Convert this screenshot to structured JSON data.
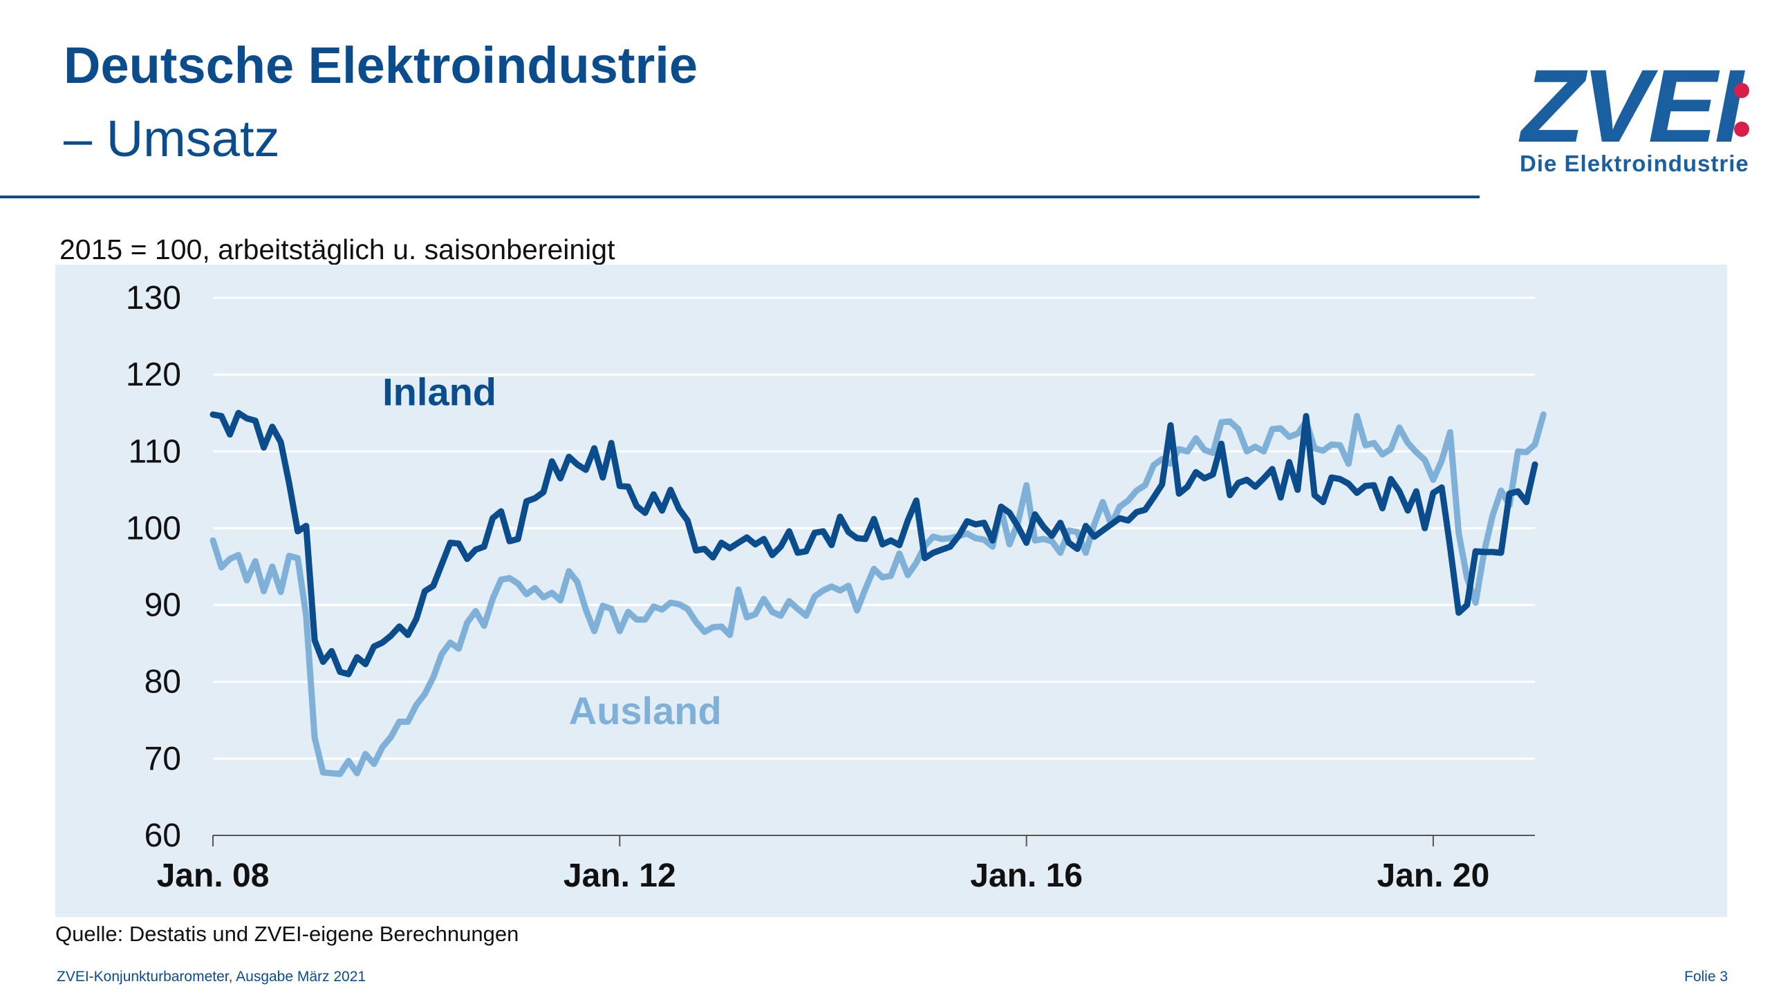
{
  "header": {
    "title_line1": "Deutsche Elektroindustrie",
    "title_line2": "– Umsatz"
  },
  "logo": {
    "wordmark": "ZVEI",
    "tagline": "Die Elektroindustrie",
    "dot_color": "#d6204b"
  },
  "subtitle": "2015 = 100, arbeitstäglich u. saisonbereinigt",
  "source": "Quelle: Destatis und ZVEI-eigene Berechnungen",
  "footer": {
    "left": "ZVEI-Konjunkturbarometer, Ausgabe März 2021",
    "right": "Folie 3"
  },
  "colors": {
    "brand": "#0b4c8c",
    "inland": "#0b4c8c",
    "ausland": "#7eb0d8",
    "panel": "#e2edf6"
  },
  "chart_data": {
    "type": "line",
    "title": "Deutsche Elektroindustrie – Umsatz",
    "ylabel": "2015 = 100, arbeitstäglich u. saisonbereinigt",
    "xlabel": "",
    "ylim": [
      60,
      130
    ],
    "yticks": [
      60,
      70,
      80,
      90,
      100,
      110,
      120,
      130
    ],
    "x_start": "Jan. 08",
    "x_ticks": [
      {
        "label": "Jan. 08",
        "index": 0
      },
      {
        "label": "Jan. 12",
        "index": 48
      },
      {
        "label": "Jan. 16",
        "index": 96
      },
      {
        "label": "Jan. 20",
        "index": 144
      }
    ],
    "x_count": 157,
    "grid": true,
    "series": [
      {
        "name": "Inland",
        "color": "#0b4c8c",
        "values": [
          114.8,
          114.6,
          112.2,
          115.0,
          114.3,
          114.0,
          110.5,
          113.2,
          111.2,
          105.8,
          99.6,
          100.3,
          85.4,
          82.6,
          84.0,
          81.3,
          81.0,
          83.2,
          82.3,
          84.6,
          85.1,
          86.0,
          87.2,
          86.1,
          88.2,
          91.8,
          92.5,
          95.3,
          98.1,
          98.0,
          96.0,
          97.2,
          97.6,
          101.3,
          102.2,
          98.3,
          98.6,
          103.5,
          103.9,
          104.7,
          108.7,
          106.5,
          109.3,
          108.3,
          107.6,
          110.4,
          106.6,
          111.1,
          105.5,
          105.4,
          102.9,
          102.0,
          104.4,
          102.3,
          105.0,
          102.5,
          101.0,
          97.1,
          97.3,
          96.2,
          98.1,
          97.4,
          98.1,
          98.8,
          97.9,
          98.6,
          96.5,
          97.6,
          99.6,
          96.8,
          97.0,
          99.4,
          99.6,
          97.8,
          101.5,
          99.5,
          98.7,
          98.6,
          101.2,
          97.9,
          98.4,
          97.8,
          101.0,
          103.6,
          96.1,
          96.8,
          97.2,
          97.6,
          99.0,
          100.9,
          100.5,
          100.7,
          98.4,
          102.8,
          102.0,
          100.2,
          98.1,
          101.8,
          100.2,
          99.0,
          100.7,
          98.1,
          97.3,
          100.3,
          98.9,
          99.7,
          100.5,
          101.3,
          101.0,
          102.1,
          102.4,
          104.0,
          105.7,
          113.4,
          104.5,
          105.4,
          107.3,
          106.5,
          107.0,
          111.0,
          104.3,
          105.9,
          106.3,
          105.4,
          106.5,
          107.7,
          104.0,
          108.6,
          105.0,
          114.6,
          104.3,
          103.4,
          106.6,
          106.4,
          105.8,
          104.6,
          105.5,
          105.6,
          102.6,
          106.4,
          104.8,
          102.3,
          104.8,
          100.0,
          104.6,
          105.3,
          97.5,
          89.0,
          90.0,
          97.0,
          96.9,
          96.9,
          96.8,
          104.5,
          104.8,
          103.4,
          108.3
        ]
      },
      {
        "name": "Ausland",
        "color": "#7eb0d8",
        "values": [
          98.4,
          94.9,
          96.0,
          96.5,
          93.2,
          95.7,
          91.8,
          95.0,
          91.7,
          96.4,
          96.1,
          88.6,
          72.7,
          68.2,
          68.1,
          68.0,
          69.7,
          68.1,
          70.6,
          69.3,
          71.5,
          72.8,
          74.8,
          74.8,
          77.0,
          78.4,
          80.6,
          83.6,
          85.1,
          84.3,
          87.7,
          89.2,
          87.3,
          90.8,
          93.3,
          93.5,
          92.8,
          91.4,
          92.2,
          91.0,
          91.6,
          90.6,
          94.4,
          93.0,
          89.4,
          86.6,
          89.9,
          89.5,
          86.6,
          89.1,
          88.1,
          88.1,
          89.8,
          89.4,
          90.3,
          90.1,
          89.5,
          87.8,
          86.5,
          87.1,
          87.2,
          86.1,
          92.0,
          88.4,
          88.8,
          90.8,
          89.1,
          88.6,
          90.5,
          89.5,
          88.6,
          91.1,
          91.9,
          92.4,
          91.9,
          92.5,
          89.3,
          92.1,
          94.7,
          93.6,
          93.8,
          96.7,
          93.9,
          95.5,
          97.7,
          98.9,
          98.6,
          98.7,
          99.0,
          99.3,
          98.7,
          98.5,
          97.6,
          102.5,
          97.9,
          100.8,
          105.6,
          98.4,
          98.6,
          98.3,
          96.8,
          99.7,
          99.5,
          96.8,
          100.5,
          103.4,
          100.5,
          102.8,
          103.6,
          104.9,
          105.6,
          108.2,
          109.0,
          108.4,
          110.3,
          110.0,
          111.7,
          110.2,
          109.8,
          113.8,
          113.9,
          112.9,
          110.0,
          110.6,
          110.0,
          112.9,
          113.0,
          111.9,
          112.3,
          113.9,
          110.4,
          110.1,
          110.9,
          110.8,
          108.4,
          114.6,
          110.8,
          111.1,
          109.6,
          110.3,
          113.1,
          111.1,
          109.9,
          108.9,
          106.3,
          108.8,
          112.5,
          99.4,
          93.5,
          90.3,
          96.9,
          101.6,
          104.9,
          103.0,
          110.0,
          109.9,
          110.9,
          114.8
        ]
      }
    ],
    "annotations": [
      {
        "text": "Inland",
        "series": "Inland"
      },
      {
        "text": "Ausland",
        "series": "Ausland"
      }
    ]
  }
}
